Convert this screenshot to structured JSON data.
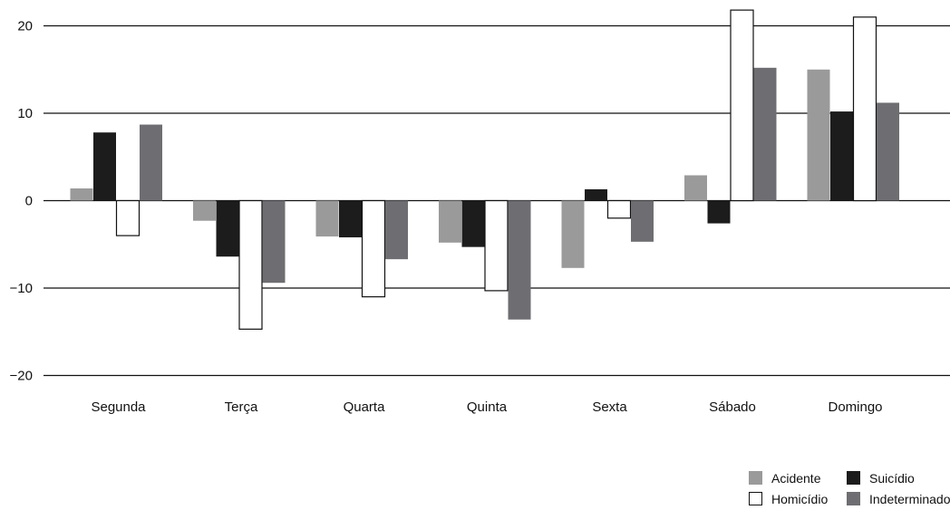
{
  "chart_data": {
    "type": "bar",
    "title": "",
    "xlabel": "",
    "ylabel": "",
    "ylim": [
      -20,
      20
    ],
    "yticks": [
      20,
      10,
      0,
      -10,
      -20
    ],
    "ytick_labels": [
      "20",
      "10",
      "0",
      "−10",
      "−20"
    ],
    "categories": [
      "Segunda",
      "Terça",
      "Quarta",
      "Quinta",
      "Sexta",
      "Sábado",
      "Domingo"
    ],
    "series": [
      {
        "name": "Acidente",
        "color": "#9a9a9a",
        "values": [
          1.4,
          -2.3,
          -4.1,
          -4.8,
          -7.7,
          2.9,
          15.0
        ]
      },
      {
        "name": "Suicídio",
        "color": "#1c1c1c",
        "values": [
          7.8,
          -6.4,
          -4.2,
          -5.3,
          1.3,
          -2.6,
          10.2
        ]
      },
      {
        "name": "Homicídio",
        "color": "#ffffff",
        "values": [
          -4.0,
          -14.7,
          -11.0,
          -10.3,
          -2.0,
          21.8,
          21.0
        ]
      },
      {
        "name": "Indeterminado",
        "color": "#6e6e72",
        "values": [
          8.7,
          -9.4,
          -6.7,
          -13.6,
          -4.7,
          15.2,
          11.2
        ]
      }
    ],
    "gridlines": true,
    "legend_position": "bottom-right"
  }
}
